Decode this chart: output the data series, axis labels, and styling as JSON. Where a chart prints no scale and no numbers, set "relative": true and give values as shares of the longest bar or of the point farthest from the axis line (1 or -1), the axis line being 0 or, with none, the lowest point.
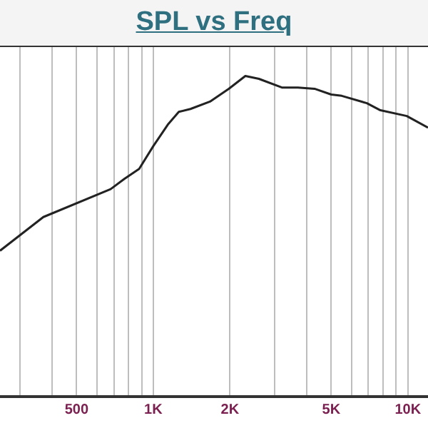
{
  "chart_data": {
    "type": "line",
    "title": "SPL vs Freq",
    "relative": true,
    "log": "x",
    "grid": "x",
    "legend": false,
    "marker": "none",
    "line_style": "solid",
    "xlim": [
      250,
      12000
    ],
    "xticks": [
      {
        "value": 300,
        "label": null
      },
      {
        "value": 400,
        "label": null
      },
      500,
      {
        "value": 600,
        "label": null
      },
      {
        "value": 700,
        "label": null
      },
      {
        "value": 800,
        "label": null
      },
      {
        "value": 900,
        "label": null
      },
      {
        "value": 1000,
        "label": "1K"
      },
      {
        "value": 2000,
        "label": "2K"
      },
      {
        "value": 3000,
        "label": null
      },
      {
        "value": 4000,
        "label": null
      },
      {
        "value": 5000,
        "label": "5K"
      },
      {
        "value": 6000,
        "label": null
      },
      {
        "value": 7000,
        "label": null
      },
      {
        "value": 8000,
        "label": null
      },
      {
        "value": 9000,
        "label": null
      },
      {
        "value": 10000,
        "label": "10K"
      }
    ],
    "x": [
      250,
      370,
      680,
      770,
      880,
      1000,
      1140,
      1260,
      1400,
      1670,
      1980,
      2300,
      2600,
      3200,
      3700,
      4300,
      5000,
      5500,
      6900,
      7800,
      9900,
      12000
    ],
    "series": [
      {
        "color": "#222222",
        "values": [
          0.455,
          0.56,
          0.647,
          0.679,
          0.71,
          0.781,
          0.848,
          0.888,
          0.897,
          0.92,
          0.96,
          1,
          0.991,
          0.964,
          0.964,
          0.96,
          0.942,
          0.938,
          0.915,
          0.893,
          0.875,
          0.839
        ]
      }
    ]
  }
}
